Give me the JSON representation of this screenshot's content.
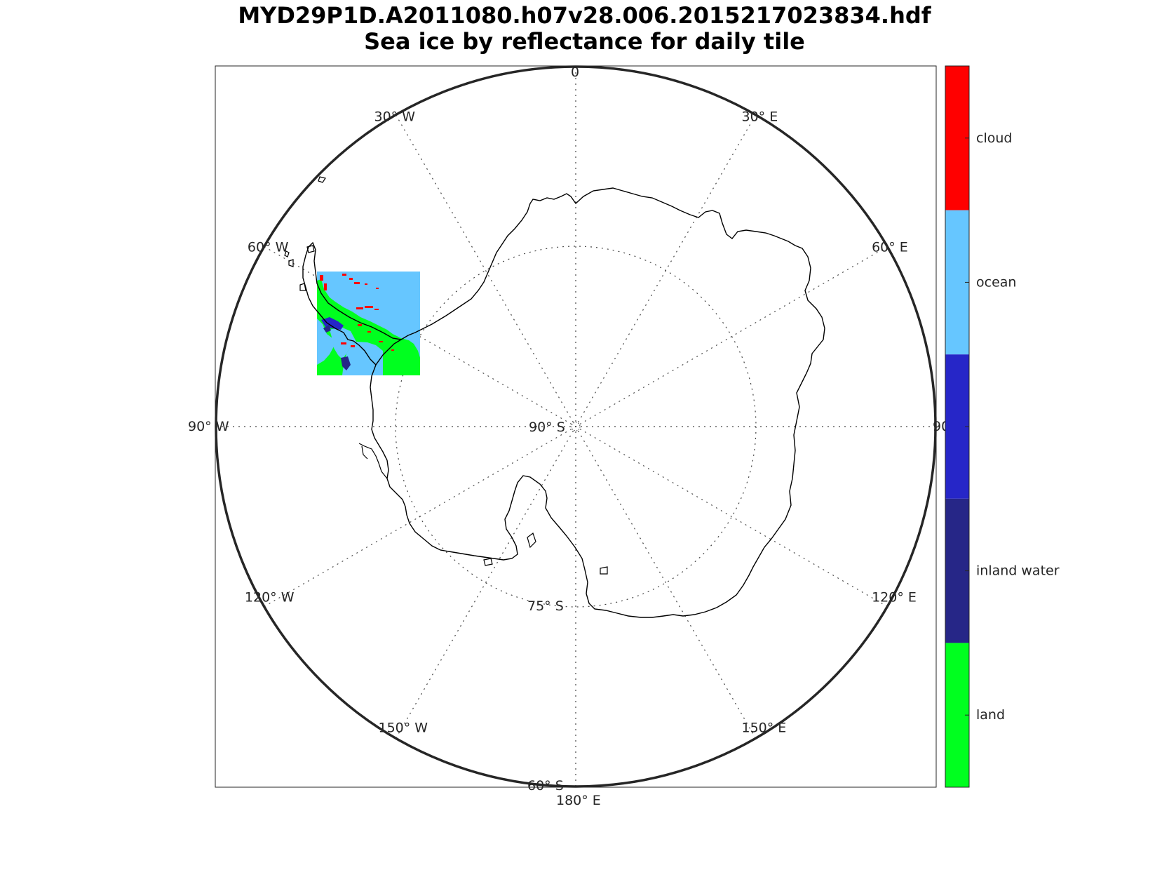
{
  "title": {
    "line1": "MYD29P1D.A2011080.h07v28.006.2015217023834.hdf",
    "line2": "Sea ice by reflectance for daily tile"
  },
  "map": {
    "projection": "south polar stereographic",
    "meridian_labels": [
      {
        "deg": "0",
        "text": "0"
      },
      {
        "deg": "30",
        "text": "30° E"
      },
      {
        "deg": "60",
        "text": "60° E"
      },
      {
        "deg": "90",
        "text": "90"
      },
      {
        "deg": "120",
        "text": "120° E"
      },
      {
        "deg": "150",
        "text": "150° E"
      },
      {
        "deg": "180",
        "text": "180° E"
      },
      {
        "deg": "-150",
        "text": "150° W"
      },
      {
        "deg": "-120",
        "text": "120° W"
      },
      {
        "deg": "-90",
        "text": "90° W"
      },
      {
        "deg": "-60",
        "text": "60° W"
      },
      {
        "deg": "-30",
        "text": "30° W"
      }
    ],
    "parallel_labels": [
      "90° S",
      "75° S",
      "60° S"
    ]
  },
  "colorbar": {
    "categories": [
      {
        "label": "cloud",
        "color": "#ff0000"
      },
      {
        "label": "ocean",
        "color": "#66c6ff"
      },
      {
        "label": "",
        "color": "#2626c8"
      },
      {
        "label": "inland water",
        "color": "#262687"
      },
      {
        "label": "land",
        "color": "#00ff1f"
      }
    ]
  }
}
